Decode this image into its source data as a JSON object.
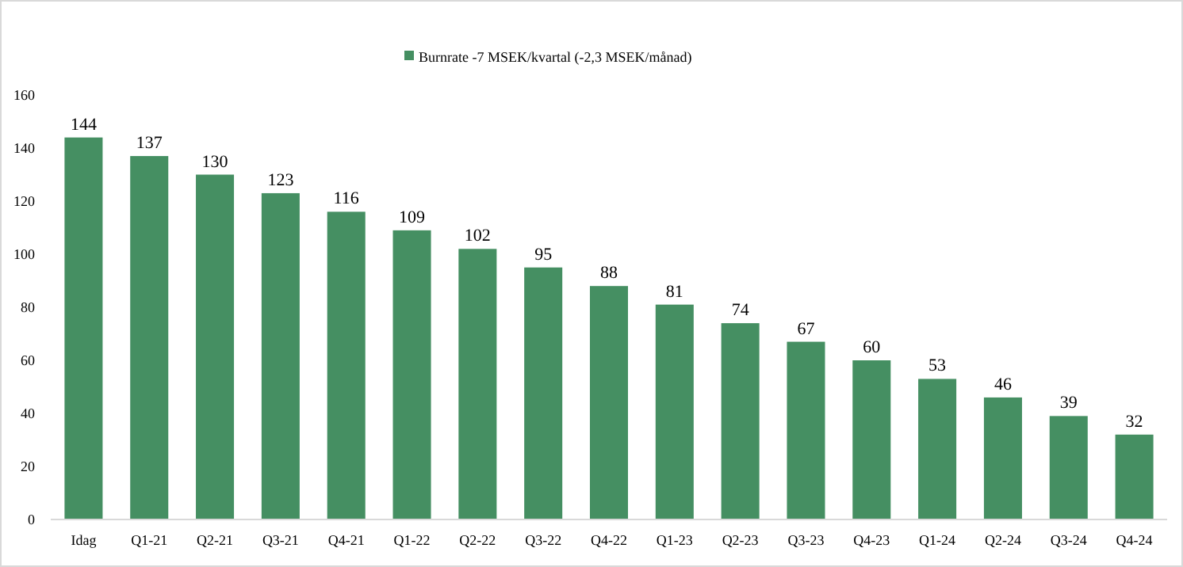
{
  "chart_data": {
    "type": "bar",
    "categories": [
      "Idag",
      "Q1-21",
      "Q2-21",
      "Q3-21",
      "Q4-21",
      "Q1-22",
      "Q2-22",
      "Q3-22",
      "Q4-22",
      "Q1-23",
      "Q2-23",
      "Q3-23",
      "Q4-23",
      "Q1-24",
      "Q2-24",
      "Q3-24",
      "Q4-24"
    ],
    "series": [
      {
        "name": "Burnrate -7 MSEK/kvartal (-2,3 MSEK/månad)",
        "color": "#458f62",
        "values": [
          144,
          137,
          130,
          123,
          116,
          109,
          102,
          95,
          88,
          81,
          74,
          67,
          60,
          53,
          46,
          39,
          32
        ]
      }
    ],
    "ylim": [
      0,
      160
    ],
    "yticks": [
      0,
      20,
      40,
      60,
      80,
      100,
      120,
      140,
      160
    ],
    "data_labels": true,
    "legend": "top",
    "grid": false
  }
}
